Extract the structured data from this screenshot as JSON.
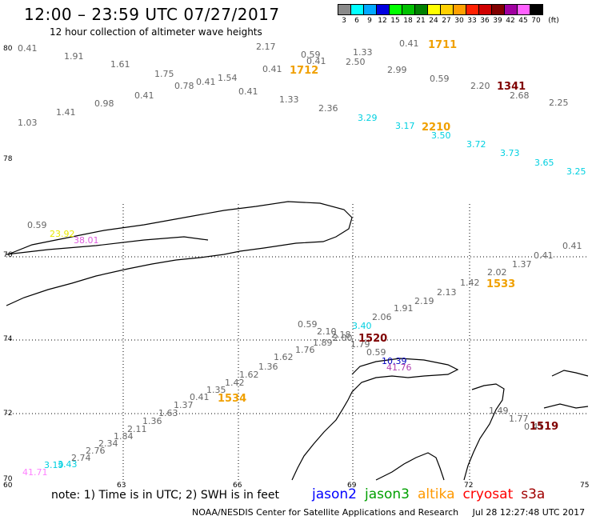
{
  "header": {
    "title": "12:00 – 23:59 UTC 07/27/2017",
    "subtitle": "12 hour collection of altimeter wave heights"
  },
  "color_scale": {
    "bins": [
      {
        "color": "#8a8a8a",
        "label": "3"
      },
      {
        "color": "#00ffff",
        "label": "6"
      },
      {
        "color": "#00a8ff",
        "label": "9"
      },
      {
        "color": "#0000e0",
        "label": "12"
      },
      {
        "color": "#00ff00",
        "label": "15"
      },
      {
        "color": "#00c000",
        "label": "18"
      },
      {
        "color": "#008000",
        "label": "21"
      },
      {
        "color": "#ffff00",
        "label": "24"
      },
      {
        "color": "#ffd000",
        "label": "27"
      },
      {
        "color": "#ffa000",
        "label": "30"
      },
      {
        "color": "#ff2000",
        "label": "33"
      },
      {
        "color": "#d00000",
        "label": "36"
      },
      {
        "color": "#800000",
        "label": "39"
      },
      {
        "color": "#a000a0",
        "label": "42"
      },
      {
        "color": "#ff60ff",
        "label": "45"
      },
      {
        "color": "#000000",
        "label": "70"
      }
    ],
    "unit": "(ft)"
  },
  "axes": {
    "lat_labels": [
      "80",
      "78",
      "76",
      "74",
      "72",
      "70"
    ],
    "lon_labels": [
      "60",
      "63",
      "66",
      "69",
      "72",
      "75"
    ]
  },
  "points": [
    {
      "t": "0.41",
      "c": "#666666"
    },
    {
      "t": "1.91",
      "c": "#666666"
    },
    {
      "t": "1.61",
      "c": "#666666"
    },
    {
      "t": "1.75",
      "c": "#666666"
    },
    {
      "t": "0.78",
      "c": "#666666"
    },
    {
      "t": "0.41",
      "c": "#666666"
    },
    {
      "t": "1.54",
      "c": "#666666"
    },
    {
      "t": "0.41",
      "c": "#666666"
    },
    {
      "t": "0.41",
      "c": "#666666"
    },
    {
      "t": "2.17",
      "c": "#666666"
    },
    {
      "t": "0.59",
      "c": "#666666"
    },
    {
      "t": "0.41",
      "c": "#666666"
    },
    {
      "t": "1.33",
      "c": "#666666"
    },
    {
      "t": "2.50",
      "c": "#666666"
    },
    {
      "t": "0.41",
      "c": "#666666"
    },
    {
      "t": "2.99",
      "c": "#666666"
    },
    {
      "t": "0.59",
      "c": "#666666"
    },
    {
      "t": "2.20",
      "c": "#666666"
    },
    {
      "t": "2.68",
      "c": "#666666"
    },
    {
      "t": "2.25",
      "c": "#666666"
    },
    {
      "t": "1.03",
      "c": "#666666"
    },
    {
      "t": "1.41",
      "c": "#666666"
    },
    {
      "t": "0.98",
      "c": "#666666"
    },
    {
      "t": "0.41",
      "c": "#666666"
    },
    {
      "t": "1.33",
      "c": "#666666"
    },
    {
      "t": "2.36",
      "c": "#666666"
    },
    {
      "t": "3.29",
      "c": "#00d0e0"
    },
    {
      "t": "3.17",
      "c": "#00d0e0"
    },
    {
      "t": "3.50",
      "c": "#00d0e0"
    },
    {
      "t": "3.72",
      "c": "#00d0e0"
    },
    {
      "t": "3.73",
      "c": "#00d0e0"
    },
    {
      "t": "3.65",
      "c": "#00d0e0"
    },
    {
      "t": "3.25",
      "c": "#00d0e0"
    },
    {
      "t": "0.59",
      "c": "#666666"
    },
    {
      "t": "23.92",
      "c": "#e8e800"
    },
    {
      "t": "38.01",
      "c": "#e060e0"
    },
    {
      "t": "0.41",
      "c": "#666666"
    },
    {
      "t": "0.41",
      "c": "#666666"
    },
    {
      "t": "1.37",
      "c": "#666666"
    },
    {
      "t": "2.02",
      "c": "#666666"
    },
    {
      "t": "1.42",
      "c": "#666666"
    },
    {
      "t": "2.13",
      "c": "#666666"
    },
    {
      "t": "2.19",
      "c": "#666666"
    },
    {
      "t": "1.91",
      "c": "#666666"
    },
    {
      "t": "2.06",
      "c": "#666666"
    },
    {
      "t": "3.40",
      "c": "#00d0e0"
    },
    {
      "t": "0.59",
      "c": "#666666"
    },
    {
      "t": "2.10",
      "c": "#666666"
    },
    {
      "t": "2.18",
      "c": "#666666"
    },
    {
      "t": "2.00",
      "c": "#666666"
    },
    {
      "t": "1.89",
      "c": "#666666"
    },
    {
      "t": "1.79",
      "c": "#666666"
    },
    {
      "t": "1.76",
      "c": "#666666"
    },
    {
      "t": "0.59",
      "c": "#666666"
    },
    {
      "t": "10.39",
      "c": "#0000c0"
    },
    {
      "t": "41.76",
      "c": "#b040b0"
    },
    {
      "t": "1.62",
      "c": "#666666"
    },
    {
      "t": "1.36",
      "c": "#666666"
    },
    {
      "t": "1.62",
      "c": "#666666"
    },
    {
      "t": "1.42",
      "c": "#666666"
    },
    {
      "t": "1.35",
      "c": "#666666"
    },
    {
      "t": "0.41",
      "c": "#666666"
    },
    {
      "t": "1.37",
      "c": "#666666"
    },
    {
      "t": "1.63",
      "c": "#666666"
    },
    {
      "t": "1.36",
      "c": "#666666"
    },
    {
      "t": "2.11",
      "c": "#666666"
    },
    {
      "t": "1.84",
      "c": "#666666"
    },
    {
      "t": "2.34",
      "c": "#666666"
    },
    {
      "t": "2.76",
      "c": "#666666"
    },
    {
      "t": "2.74",
      "c": "#666666"
    },
    {
      "t": "3.43",
      "c": "#00d0e0"
    },
    {
      "t": "3.19",
      "c": "#00d0e0"
    },
    {
      "t": "41.71",
      "c": "#ff80ff"
    },
    {
      "t": "1.49",
      "c": "#666666"
    },
    {
      "t": "1.77",
      "c": "#666666"
    },
    {
      "t": "0.41",
      "c": "#666666"
    }
  ],
  "pass_labels": [
    {
      "t": "1711",
      "c": "#f0a000"
    },
    {
      "t": "1712",
      "c": "#f0a000"
    },
    {
      "t": "1341",
      "c": "#800000"
    },
    {
      "t": "2210",
      "c": "#f0a000"
    },
    {
      "t": "1533",
      "c": "#f0a000"
    },
    {
      "t": "1520",
      "c": "#800000"
    },
    {
      "t": "1534",
      "c": "#f0a000"
    },
    {
      "t": "1519",
      "c": "#800000"
    }
  ],
  "footer": {
    "note": "note:  1) Time is in UTC;  2) SWH is in feet",
    "legend": [
      {
        "name": "jason2",
        "color": "#0000ff"
      },
      {
        "name": "jason3",
        "color": "#00a000"
      },
      {
        "name": "altika",
        "color": "#ff9900"
      },
      {
        "name": "cryosat",
        "color": "#ff0000"
      },
      {
        "name": "s3a",
        "color": "#a00000"
      }
    ],
    "credit": "NOAA/NESDIS Center for Satellite Applications and Research",
    "timestamp": "Jul 28 12:27:48 UTC 2017"
  }
}
